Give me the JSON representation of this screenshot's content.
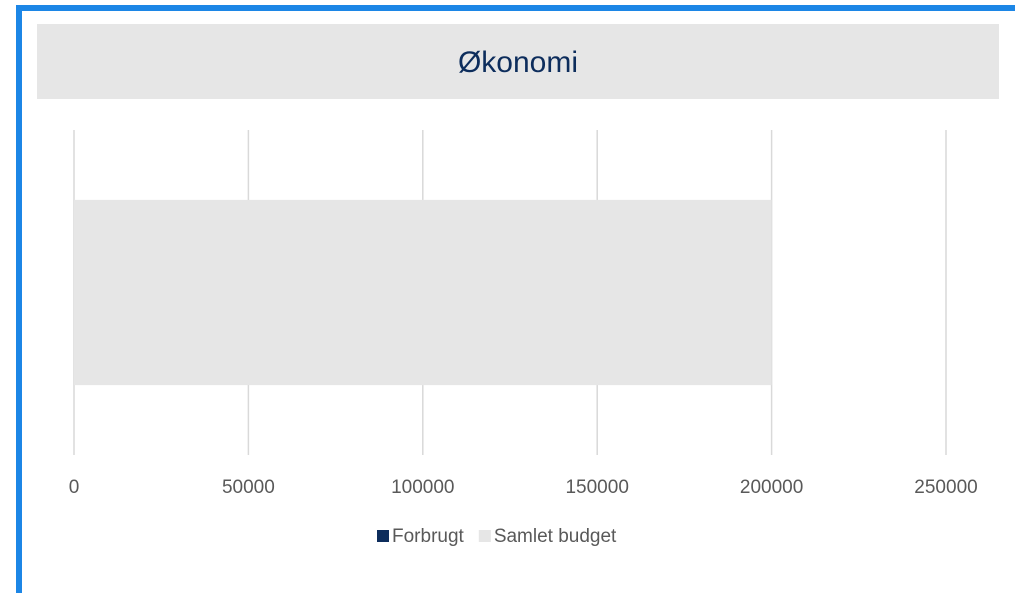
{
  "chart_data": {
    "type": "bar",
    "orientation": "horizontal",
    "title": "Økonomi",
    "categories": [
      null
    ],
    "series": [
      {
        "name": "Forbrugt",
        "color": "#0d2d5c",
        "values": [
          0
        ]
      },
      {
        "name": "Samlet budget",
        "color": "#e6e6e6",
        "values": [
          200000
        ]
      }
    ],
    "xlim": [
      0,
      250000
    ],
    "xticks": [
      0,
      50000,
      100000,
      150000,
      200000,
      250000
    ],
    "grid": true
  }
}
